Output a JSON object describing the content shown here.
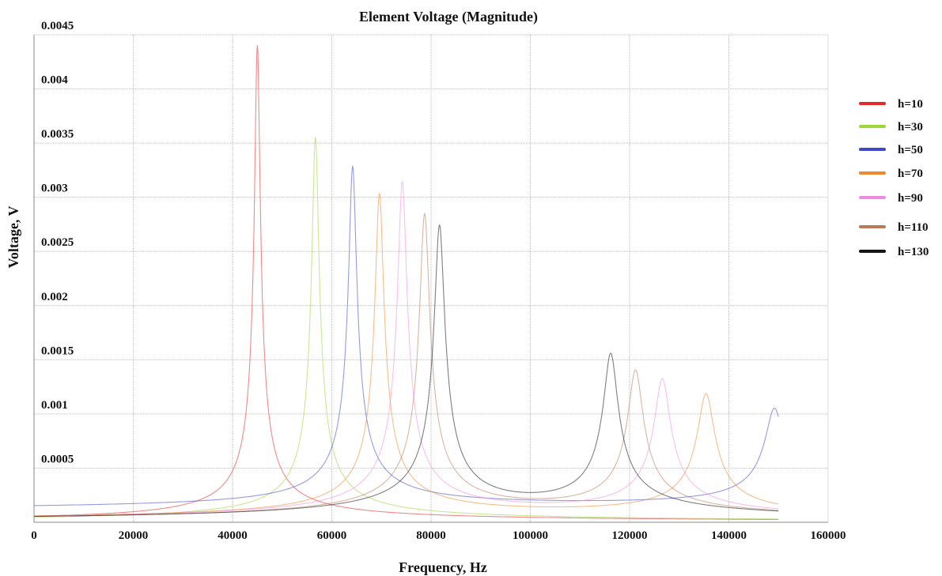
{
  "chart_data": {
    "type": "line",
    "title": "Element Voltage (Magnitude)",
    "xlabel": "Frequency, Hz",
    "ylabel": "Voltage, V",
    "xlim": [
      0,
      160000
    ],
    "ylim": [
      0,
      0.0045
    ],
    "x_ticks": [
      "0",
      "20000",
      "40000",
      "60000",
      "80000",
      "100000",
      "120000",
      "140000",
      "160000"
    ],
    "y_ticks": [
      "0.0005",
      "0.001",
      "0.0015",
      "0.002",
      "0.0025",
      "0.003",
      "0.0035",
      "0.004",
      "0.0045"
    ],
    "grid": true,
    "legend_position": "right",
    "x_range": [
      0,
      150000
    ],
    "series": [
      {
        "name": "h=10",
        "color": "#e8282b",
        "peaks": [
          {
            "f": 45000,
            "v": 0.0044
          }
        ],
        "end_value": 2e-05
      },
      {
        "name": "h=30",
        "color": "#9bd63a",
        "peaks": [
          {
            "f": 56700,
            "v": 0.00355
          }
        ],
        "end_value": 3e-05
      },
      {
        "name": "h=50",
        "color": "#4048c8",
        "peaks": [
          {
            "f": 64200,
            "v": 0.00316
          },
          {
            "f": 149200,
            "v": 0.00092
          }
        ],
        "end_value": 0.0007
      },
      {
        "name": "h=70",
        "color": "#f0882e",
        "peaks": [
          {
            "f": 69600,
            "v": 0.003
          },
          {
            "f": 135400,
            "v": 0.00114
          }
        ],
        "end_value": 7e-05
      },
      {
        "name": "h=90",
        "color": "#f08ce0",
        "peaks": [
          {
            "f": 74200,
            "v": 0.0031
          },
          {
            "f": 126600,
            "v": 0.00127
          }
        ],
        "end_value": 4e-05
      },
      {
        "name": "h=110",
        "color": "#b87a5c",
        "peaks": [
          {
            "f": 78700,
            "v": 0.0028
          },
          {
            "f": 121200,
            "v": 0.00134
          }
        ],
        "end_value": 3e-05
      },
      {
        "name": "h=130",
        "color": "#151515",
        "peaks": [
          {
            "f": 81700,
            "v": 0.00268
          },
          {
            "f": 116200,
            "v": 0.00148
          }
        ],
        "end_value": 3e-05
      }
    ]
  }
}
